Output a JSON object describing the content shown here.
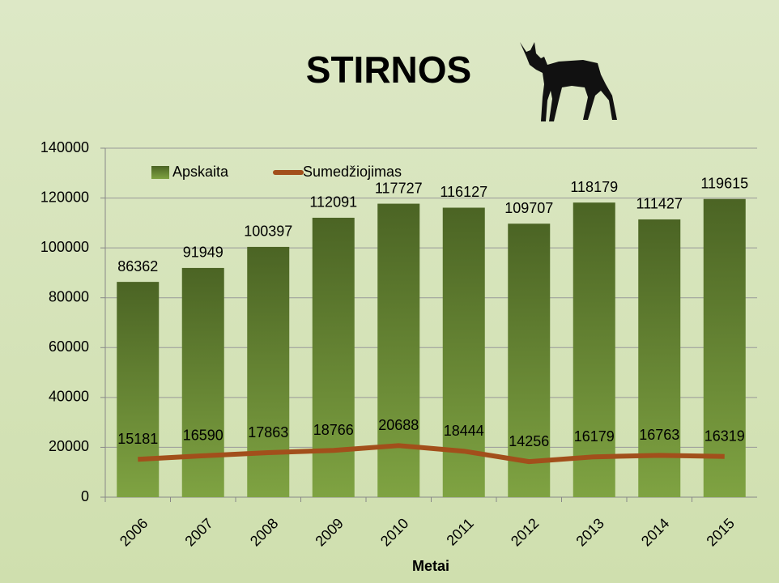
{
  "chart_data": {
    "type": "bar",
    "title": "STIRNOS",
    "x_label": "Metai",
    "categories": [
      "2006",
      "2007",
      "2008",
      "2009",
      "2010",
      "2011",
      "2012",
      "2013",
      "2014",
      "2015"
    ],
    "series": [
      {
        "name": "Apskaita",
        "type": "bar",
        "color": "#4b6424",
        "values": [
          86362,
          91949,
          100397,
          112091,
          117727,
          116127,
          109707,
          118179,
          111427,
          119615
        ]
      },
      {
        "name": "Sumedžiojimas",
        "type": "line",
        "color": "#a24f1b",
        "values": [
          15181,
          16590,
          17863,
          18766,
          20688,
          18444,
          14256,
          16179,
          16763,
          16319
        ]
      }
    ],
    "ylim": [
      0,
      140000
    ],
    "yticks": [
      0,
      20000,
      40000,
      60000,
      80000,
      100000,
      120000,
      140000
    ],
    "grid": true
  }
}
